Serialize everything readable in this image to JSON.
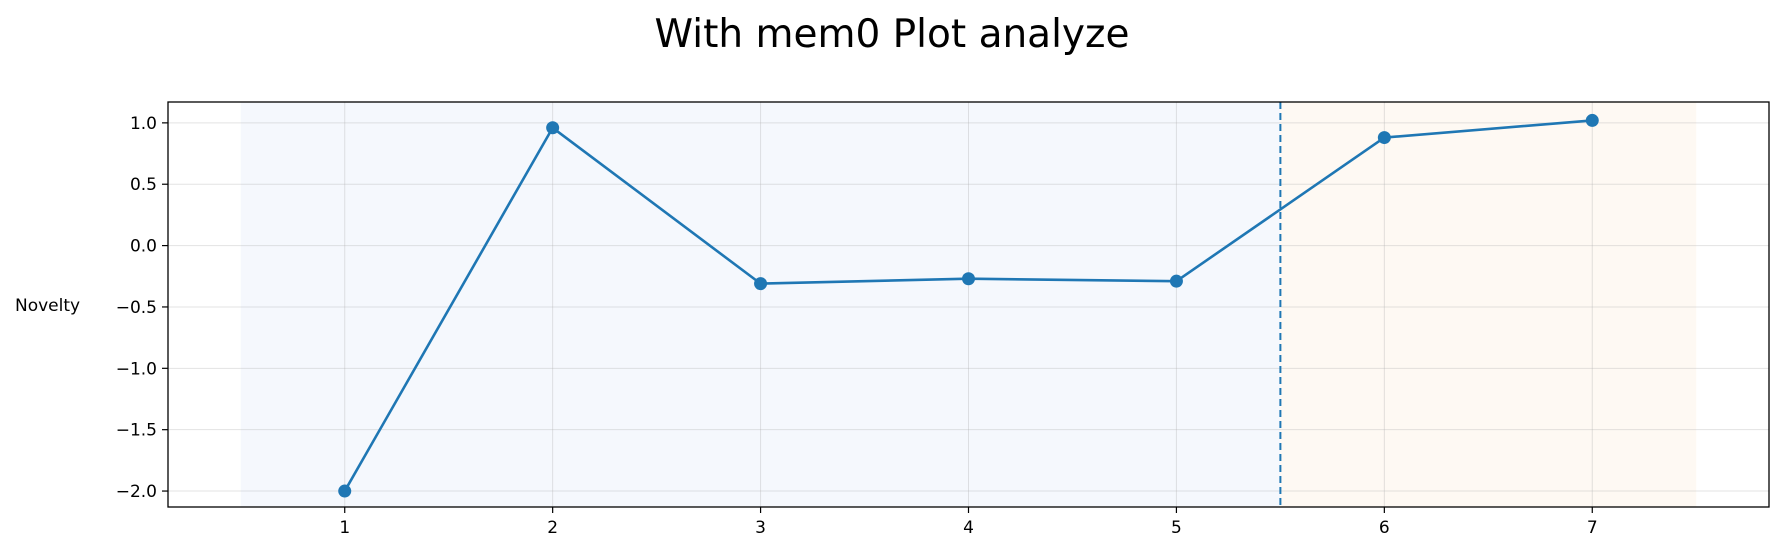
{
  "chart_data": {
    "type": "line",
    "title": "With mem0 Plot analyze",
    "xlabel": "",
    "ylabel": "Novelty",
    "x": [
      1,
      2,
      3,
      4,
      5,
      6,
      7
    ],
    "series": [
      {
        "values": [
          -2.0,
          0.96,
          -0.31,
          -0.27,
          -0.29,
          0.88,
          1.02
        ],
        "color": "#1f77b4",
        "marker": "circle"
      }
    ],
    "xlim": [
      0.15,
      7.85
    ],
    "ylim": [
      -2.13,
      1.17
    ],
    "xticks": [
      1,
      2,
      3,
      4,
      5,
      6,
      7
    ],
    "xtick_labels": [
      "1",
      "2",
      "3",
      "4",
      "5",
      "6",
      "7"
    ],
    "yticks": [
      1.0,
      0.5,
      0.0,
      -0.5,
      -1.0,
      -1.5,
      -2.0
    ],
    "ytick_labels": [
      "1.0",
      "0.5",
      "0.0",
      "−0.5",
      "−1.0",
      "−1.5",
      "−2.0"
    ],
    "grid": true,
    "shaded_regions": [
      {
        "x_start": 0.5,
        "x_end": 5.5,
        "color": "#f5f8fd"
      },
      {
        "x_start": 5.5,
        "x_end": 7.5,
        "color": "#fef9f3"
      }
    ],
    "vertical_line": {
      "x": 5.5,
      "style": "dashed",
      "color": "#1f77b4"
    }
  }
}
